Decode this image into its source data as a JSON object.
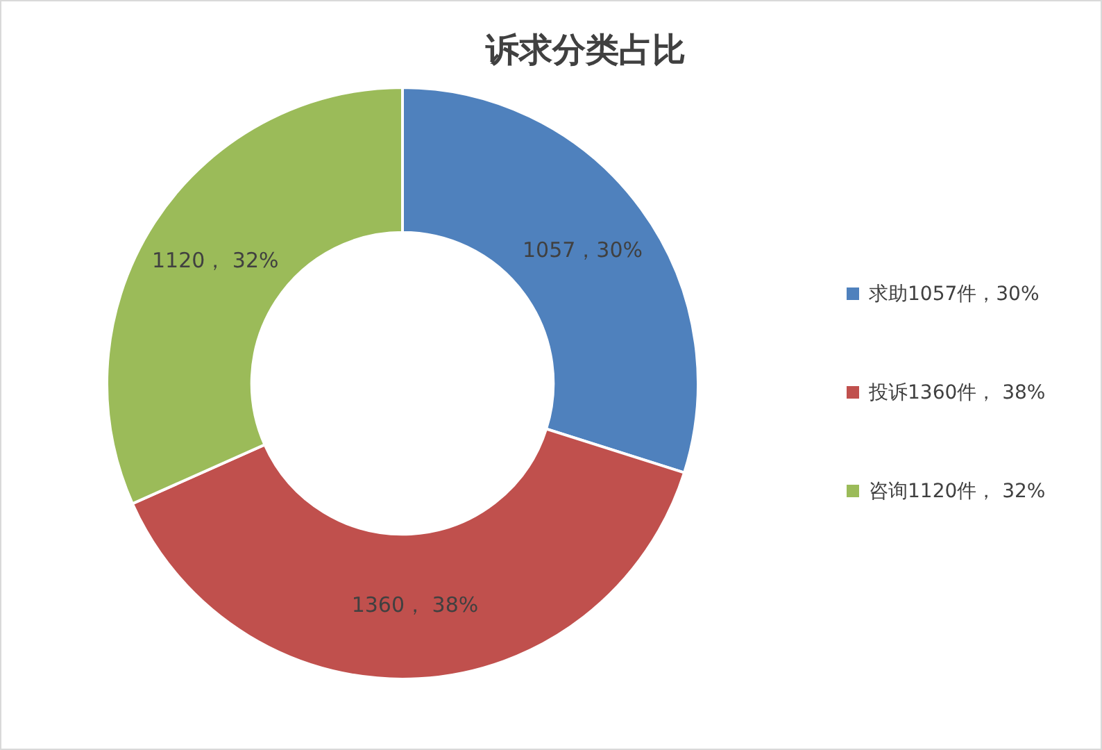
{
  "chart_data": {
    "type": "donut",
    "title": "诉求分类占比",
    "categories": [
      "求助1057件，30%",
      "投诉1360件， 38%",
      "咨询1120件， 32%"
    ],
    "values": [
      1057,
      1360,
      1120
    ],
    "colors": [
      "#4f81bd",
      "#c0504d",
      "#9bbb59"
    ],
    "value_labels": [
      "1057，30%",
      "1360， 38%",
      "1120， 32%"
    ],
    "legend": "right"
  }
}
